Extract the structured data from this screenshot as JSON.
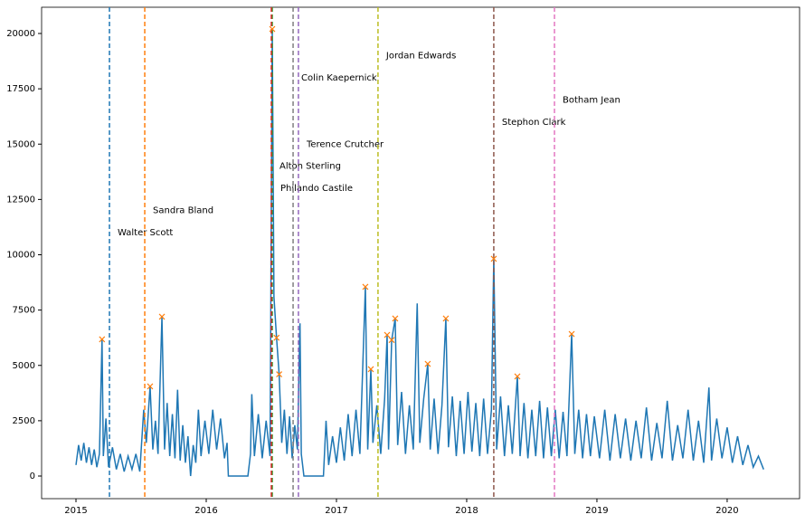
{
  "chart_data": {
    "type": "line",
    "x": [
      2015.0,
      2015.02,
      2015.04,
      2015.06,
      2015.08,
      2015.1,
      2015.12,
      2015.14,
      2015.16,
      2015.18,
      2015.2,
      2015.21,
      2015.23,
      2015.25,
      2015.28,
      2015.31,
      2015.34,
      2015.37,
      2015.4,
      2015.43,
      2015.46,
      2015.49,
      2015.52,
      2015.54,
      2015.569,
      2015.59,
      2015.61,
      2015.63,
      2015.66,
      2015.68,
      2015.7,
      2015.72,
      2015.74,
      2015.76,
      2015.78,
      2015.8,
      2015.82,
      2015.84,
      2015.86,
      2015.88,
      2015.9,
      2015.92,
      2015.94,
      2015.96,
      2015.99,
      2016.02,
      2016.05,
      2016.08,
      2016.11,
      2016.14,
      2016.16,
      2016.17,
      2016.25,
      2016.32,
      2016.34,
      2016.35,
      2016.37,
      2016.4,
      2016.43,
      2016.46,
      2016.49,
      2016.507,
      2016.52,
      2016.54,
      2016.56,
      2016.58,
      2016.6,
      2016.62,
      2016.64,
      2016.66,
      2016.68,
      2016.7,
      2016.72,
      2016.73,
      2016.75,
      2016.85,
      2016.9,
      2016.92,
      2016.94,
      2016.97,
      2017.0,
      2017.03,
      2017.06,
      2017.09,
      2017.12,
      2017.15,
      2017.18,
      2017.222,
      2017.24,
      2017.264,
      2017.28,
      2017.31,
      2017.34,
      2017.37,
      2017.389,
      2017.4,
      2017.424,
      2017.451,
      2017.47,
      2017.5,
      2017.53,
      2017.56,
      2017.59,
      2017.62,
      2017.64,
      2017.67,
      2017.701,
      2017.72,
      2017.75,
      2017.78,
      2017.81,
      2017.84,
      2017.86,
      2017.89,
      2017.92,
      2017.95,
      2017.98,
      2018.01,
      2018.04,
      2018.07,
      2018.1,
      2018.13,
      2018.16,
      2018.19,
      2018.208,
      2018.23,
      2018.26,
      2018.29,
      2018.32,
      2018.35,
      2018.389,
      2018.41,
      2018.44,
      2018.47,
      2018.5,
      2018.53,
      2018.56,
      2018.59,
      2018.62,
      2018.65,
      2018.68,
      2018.71,
      2018.74,
      2018.77,
      2018.806,
      2018.83,
      2018.86,
      2018.89,
      2018.92,
      2018.95,
      2018.98,
      2019.02,
      2019.06,
      2019.1,
      2019.14,
      2019.18,
      2019.22,
      2019.26,
      2019.3,
      2019.34,
      2019.38,
      2019.42,
      2019.46,
      2019.5,
      2019.54,
      2019.58,
      2019.62,
      2019.66,
      2019.7,
      2019.74,
      2019.78,
      2019.82,
      2019.86,
      2019.88,
      2019.92,
      2019.96,
      2020.0,
      2020.04,
      2020.08,
      2020.12,
      2020.16,
      2020.2,
      2020.24,
      2020.28
    ],
    "series": [
      {
        "color": "#1f77b4",
        "values": [
          500,
          1400,
          700,
          1500,
          600,
          1300,
          500,
          1200,
          400,
          1000,
          6180,
          900,
          2600,
          400,
          1300,
          300,
          1000,
          200,
          900,
          300,
          1000,
          200,
          3000,
          1500,
          4050,
          1200,
          2500,
          1000,
          7200,
          1200,
          3300,
          900,
          2800,
          800,
          3900,
          700,
          2300,
          600,
          1800,
          0,
          1400,
          600,
          3000,
          900,
          2500,
          1000,
          3000,
          1200,
          2600,
          800,
          1500,
          0,
          0,
          0,
          1000,
          3700,
          900,
          2800,
          800,
          2500,
          900,
          20200,
          8100,
          6250,
          4600,
          1500,
          3000,
          1000,
          2700,
          800,
          2300,
          1200,
          6900,
          1000,
          0,
          0,
          0,
          2500,
          500,
          1800,
          600,
          2200,
          700,
          2800,
          900,
          3000,
          1000,
          8550,
          1200,
          4830,
          1500,
          3200,
          1000,
          3500,
          6380,
          1200,
          6150,
          7120,
          1400,
          3800,
          1000,
          3200,
          1200,
          7800,
          1500,
          3500,
          5070,
          1200,
          3500,
          1000,
          3200,
          7120,
          1300,
          3600,
          900,
          3400,
          1000,
          3800,
          1100,
          3300,
          900,
          3500,
          1000,
          3000,
          9820,
          1200,
          3600,
          900,
          3200,
          1000,
          4500,
          900,
          3300,
          800,
          3000,
          900,
          3400,
          800,
          3100,
          900,
          3000,
          800,
          2900,
          900,
          6420,
          1000,
          3000,
          800,
          2800,
          900,
          2700,
          800,
          3000,
          700,
          2800,
          800,
          2600,
          700,
          2500,
          800,
          3100,
          700,
          2400,
          800,
          3400,
          700,
          2300,
          800,
          3000,
          700,
          2500,
          600,
          4000,
          700,
          2600,
          800,
          2200,
          600,
          1800,
          500,
          1400,
          400,
          900,
          300
        ]
      }
    ],
    "peaks": {
      "color": "#ff7f0e",
      "marker": "x",
      "x": [
        2015.2,
        2015.569,
        2015.66,
        2016.507,
        2016.54,
        2016.56,
        2017.222,
        2017.264,
        2017.389,
        2017.424,
        2017.451,
        2017.701,
        2017.84,
        2018.208,
        2018.389,
        2018.806
      ],
      "values": [
        6180,
        4050,
        7200,
        20200,
        6250,
        4600,
        8550,
        4830,
        6380,
        6150,
        7120,
        5070,
        7120,
        9820,
        4500,
        6420
      ]
    },
    "vlines": [
      {
        "name": "Walter Scott",
        "x": 2015.257,
        "label_y": 11000,
        "color": "#1f77b4"
      },
      {
        "name": "Sandra Bland",
        "x": 2015.528,
        "label_y": 12000,
        "color": "#ff7f0e"
      },
      {
        "name": "Philando Castile",
        "x": 2016.507,
        "label_y": 13000,
        "color": "#2ca02c"
      },
      {
        "name": "Alton Sterling",
        "x": 2016.5,
        "label_y": 14000,
        "color": "#d62728"
      },
      {
        "name": "Terence Crutcher",
        "x": 2016.708,
        "label_y": 15000,
        "color": "#9467bd"
      },
      {
        "name": "Stephon Clark",
        "x": 2018.208,
        "label_y": 16000,
        "color": "#8c564b"
      },
      {
        "name": "Botham Jean",
        "x": 2018.674,
        "label_y": 17000,
        "color": "#e377c2"
      },
      {
        "name": "Colin Kaepernick",
        "x": 2016.667,
        "label_y": 18000,
        "color": "#7f7f7f"
      },
      {
        "name": "Jordan Edwards",
        "x": 2017.319,
        "label_y": 19000,
        "color": "#bcbd22"
      }
    ],
    "xlim": [
      2014.736,
      2020.556
    ],
    "ylim": [
      -1022,
      21186
    ],
    "xticks": [
      2015,
      2016,
      2017,
      2018,
      2019,
      2020
    ],
    "yticks": [
      0,
      2500,
      5000,
      7500,
      10000,
      12500,
      15000,
      17500,
      20000
    ]
  }
}
